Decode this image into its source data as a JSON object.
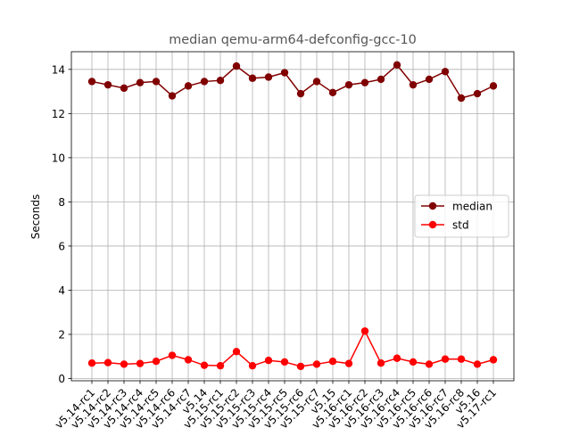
{
  "chart_data": {
    "type": "line",
    "title": "median qemu-arm64-defconfig-gcc-10",
    "xlabel": "",
    "ylabel": "Seconds",
    "ylim": [
      -0.1,
      14.8
    ],
    "yticks": [
      0,
      2,
      4,
      6,
      8,
      10,
      12,
      14
    ],
    "grid": true,
    "legend_position": "right",
    "categories": [
      "v5.14-rc1",
      "v5.14-rc2",
      "v5.14-rc3",
      "v5.14-rc4",
      "v5.14-rc5",
      "v5.14-rc6",
      "v5.14-rc7",
      "v5.14",
      "v5.15-rc1",
      "v5.15-rc2",
      "v5.15-rc3",
      "v5.15-rc4",
      "v5.15-rc5",
      "v5.15-rc6",
      "v5.15-rc7",
      "v5.15",
      "v5.16-rc1",
      "v5.16-rc2",
      "v5.16-rc3",
      "v5.16-rc4",
      "v5.16-rc5",
      "v5.16-rc6",
      "v5.16-rc7",
      "v5.16-rc8",
      "v5.16",
      "v5.17-rc1"
    ],
    "series": [
      {
        "name": "median",
        "color": "#800000",
        "values": [
          13.45,
          13.3,
          13.15,
          13.4,
          13.45,
          12.8,
          13.25,
          13.45,
          13.5,
          14.15,
          13.6,
          13.65,
          13.85,
          12.9,
          13.45,
          12.95,
          13.3,
          13.4,
          13.55,
          14.2,
          13.3,
          13.55,
          13.9,
          12.7,
          12.9,
          13.25
        ]
      },
      {
        "name": "std",
        "color": "#ff0000",
        "values": [
          0.7,
          0.72,
          0.65,
          0.68,
          0.78,
          1.05,
          0.85,
          0.6,
          0.58,
          1.22,
          0.58,
          0.82,
          0.75,
          0.55,
          0.65,
          0.78,
          0.68,
          2.15,
          0.7,
          0.92,
          0.75,
          0.65,
          0.88,
          0.88,
          0.65,
          0.85
        ]
      }
    ]
  }
}
